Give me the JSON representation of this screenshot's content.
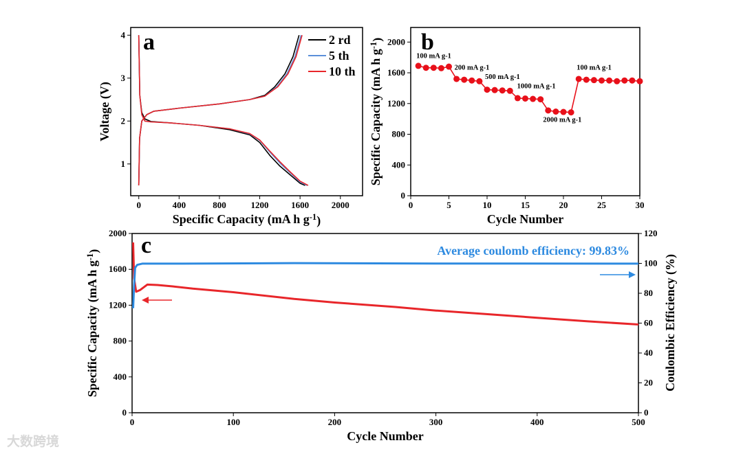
{
  "chart_data": [
    {
      "panel": "a",
      "type": "line",
      "xlabel": "Specific Capacity (mA h g-1)",
      "ylabel": "Voltage (V)",
      "xlim": [
        -80,
        2220
      ],
      "ylim": [
        0.26,
        4.18
      ],
      "xticks": [
        0,
        400,
        800,
        1200,
        1600,
        2000
      ],
      "yticks": [
        1,
        2,
        3,
        4
      ],
      "series": [
        {
          "name": "2 rd",
          "color": "#000000",
          "discharge": [
            [
              0,
              4.0
            ],
            [
              10,
              2.6
            ],
            [
              30,
              2.2
            ],
            [
              60,
              2.05
            ],
            [
              120,
              1.99
            ],
            [
              300,
              1.96
            ],
            [
              600,
              1.9
            ],
            [
              900,
              1.8
            ],
            [
              1100,
              1.68
            ],
            [
              1200,
              1.5
            ],
            [
              1300,
              1.2
            ],
            [
              1400,
              0.95
            ],
            [
              1500,
              0.75
            ],
            [
              1600,
              0.55
            ],
            [
              1650,
              0.5
            ]
          ],
          "charge": [
            [
              0,
              0.5
            ],
            [
              8,
              1.6
            ],
            [
              30,
              2.0
            ],
            [
              80,
              2.15
            ],
            [
              150,
              2.23
            ],
            [
              400,
              2.3
            ],
            [
              800,
              2.4
            ],
            [
              1100,
              2.5
            ],
            [
              1250,
              2.6
            ],
            [
              1350,
              2.8
            ],
            [
              1450,
              3.1
            ],
            [
              1530,
              3.5
            ],
            [
              1590,
              4.0
            ]
          ]
        },
        {
          "name": "5 th",
          "color": "#5b8fd9",
          "discharge": [
            [
              0,
              4.0
            ],
            [
              10,
              2.6
            ],
            [
              30,
              2.15
            ],
            [
              60,
              2.0
            ],
            [
              120,
              1.98
            ],
            [
              300,
              1.96
            ],
            [
              600,
              1.9
            ],
            [
              900,
              1.82
            ],
            [
              1100,
              1.7
            ],
            [
              1200,
              1.55
            ],
            [
              1300,
              1.28
            ],
            [
              1400,
              1.02
            ],
            [
              1500,
              0.8
            ],
            [
              1600,
              0.58
            ],
            [
              1670,
              0.5
            ]
          ],
          "charge": [
            [
              0,
              0.5
            ],
            [
              8,
              1.6
            ],
            [
              30,
              2.0
            ],
            [
              80,
              2.15
            ],
            [
              150,
              2.23
            ],
            [
              400,
              2.3
            ],
            [
              800,
              2.4
            ],
            [
              1100,
              2.5
            ],
            [
              1250,
              2.58
            ],
            [
              1370,
              2.8
            ],
            [
              1470,
              3.1
            ],
            [
              1550,
              3.5
            ],
            [
              1610,
              4.0
            ]
          ]
        },
        {
          "name": "10 th",
          "color": "#e8262a",
          "discharge": [
            [
              0,
              4.0
            ],
            [
              10,
              2.6
            ],
            [
              30,
              2.15
            ],
            [
              60,
              2.0
            ],
            [
              120,
              1.98
            ],
            [
              300,
              1.96
            ],
            [
              600,
              1.9
            ],
            [
              900,
              1.82
            ],
            [
              1100,
              1.71
            ],
            [
              1200,
              1.56
            ],
            [
              1300,
              1.3
            ],
            [
              1400,
              1.05
            ],
            [
              1500,
              0.82
            ],
            [
              1600,
              0.6
            ],
            [
              1680,
              0.5
            ]
          ],
          "charge": [
            [
              0,
              0.5
            ],
            [
              8,
              1.6
            ],
            [
              30,
              2.0
            ],
            [
              80,
              2.15
            ],
            [
              150,
              2.23
            ],
            [
              400,
              2.3
            ],
            [
              800,
              2.4
            ],
            [
              1100,
              2.5
            ],
            [
              1250,
              2.58
            ],
            [
              1380,
              2.8
            ],
            [
              1480,
              3.1
            ],
            [
              1560,
              3.5
            ],
            [
              1620,
              4.0
            ]
          ]
        }
      ],
      "panel_label": "a"
    },
    {
      "panel": "b",
      "type": "line",
      "xlabel": "Cycle Number",
      "ylabel": "Specific Capacity (mA h g-1)",
      "xlim": [
        0,
        30
      ],
      "ylim": [
        0,
        2190
      ],
      "xticks": [
        0,
        5,
        10,
        15,
        20,
        25,
        30
      ],
      "yticks": [
        0,
        400,
        800,
        1200,
        1600,
        2000
      ],
      "color": "#e8101a",
      "x": [
        1,
        2,
        3,
        4,
        5,
        6,
        7,
        8,
        9,
        10,
        11,
        12,
        13,
        14,
        15,
        16,
        17,
        18,
        19,
        20,
        21,
        22,
        23,
        24,
        25,
        26,
        27,
        28,
        29,
        30
      ],
      "values": [
        1690,
        1665,
        1665,
        1660,
        1680,
        1520,
        1510,
        1500,
        1490,
        1380,
        1375,
        1370,
        1365,
        1270,
        1265,
        1260,
        1255,
        1110,
        1095,
        1090,
        1085,
        1520,
        1510,
        1505,
        1500,
        1500,
        1490,
        1500,
        1500,
        1490
      ],
      "annotations": [
        {
          "text": "100 mA g-1",
          "x": 1,
          "y": 1790
        },
        {
          "text": "200 mA g-1",
          "x": 6,
          "y": 1640
        },
        {
          "text": "500 mA g-1",
          "x": 10,
          "y": 1520
        },
        {
          "text": "1000 mA g-1",
          "x": 14.2,
          "y": 1400
        },
        {
          "text": "2000 mA g-1",
          "x": 17.6,
          "y": 960
        },
        {
          "text": "100 mA g-1",
          "x": 22,
          "y": 1640
        }
      ],
      "panel_label": "b"
    },
    {
      "panel": "c",
      "type": "line",
      "xlabel": "Cycle Number",
      "ylabel": "Specific Capacity (mA h g-1)",
      "y2label": "Coulombic Efficiency (%)",
      "xlim": [
        0,
        500
      ],
      "ylim": [
        0,
        2000
      ],
      "y2lim": [
        0,
        120
      ],
      "xticks": [
        0,
        100,
        200,
        300,
        400,
        500
      ],
      "yticks": [
        0,
        400,
        800,
        1200,
        1600,
        2000
      ],
      "y2ticks": [
        0,
        20,
        40,
        60,
        80,
        100,
        120
      ],
      "series": [
        {
          "name": "Specific Capacity",
          "axis": "left",
          "color": "#e8262a",
          "points": [
            [
              1,
              1900
            ],
            [
              2,
              1500
            ],
            [
              4,
              1350
            ],
            [
              8,
              1370
            ],
            [
              15,
              1430
            ],
            [
              25,
              1425
            ],
            [
              40,
              1410
            ],
            [
              60,
              1385
            ],
            [
              100,
              1345
            ],
            [
              160,
              1270
            ],
            [
              200,
              1230
            ],
            [
              260,
              1180
            ],
            [
              300,
              1140
            ],
            [
              350,
              1100
            ],
            [
              400,
              1060
            ],
            [
              450,
              1020
            ],
            [
              500,
              985
            ]
          ]
        },
        {
          "name": "Coulombic Efficiency",
          "axis": "right",
          "color": "#2d8ae0",
          "points": [
            [
              1,
              70
            ],
            [
              2,
              85
            ],
            [
              3,
              97
            ],
            [
              5,
              99
            ],
            [
              10,
              99.8
            ],
            [
              50,
              99.8
            ],
            [
              160,
              100.2
            ],
            [
              300,
              99.9
            ],
            [
              500,
              99.8
            ]
          ]
        }
      ],
      "annotation": "Average coulomb efficiency: 99.83%",
      "panel_label": "c"
    }
  ],
  "watermark": "大数跨境"
}
